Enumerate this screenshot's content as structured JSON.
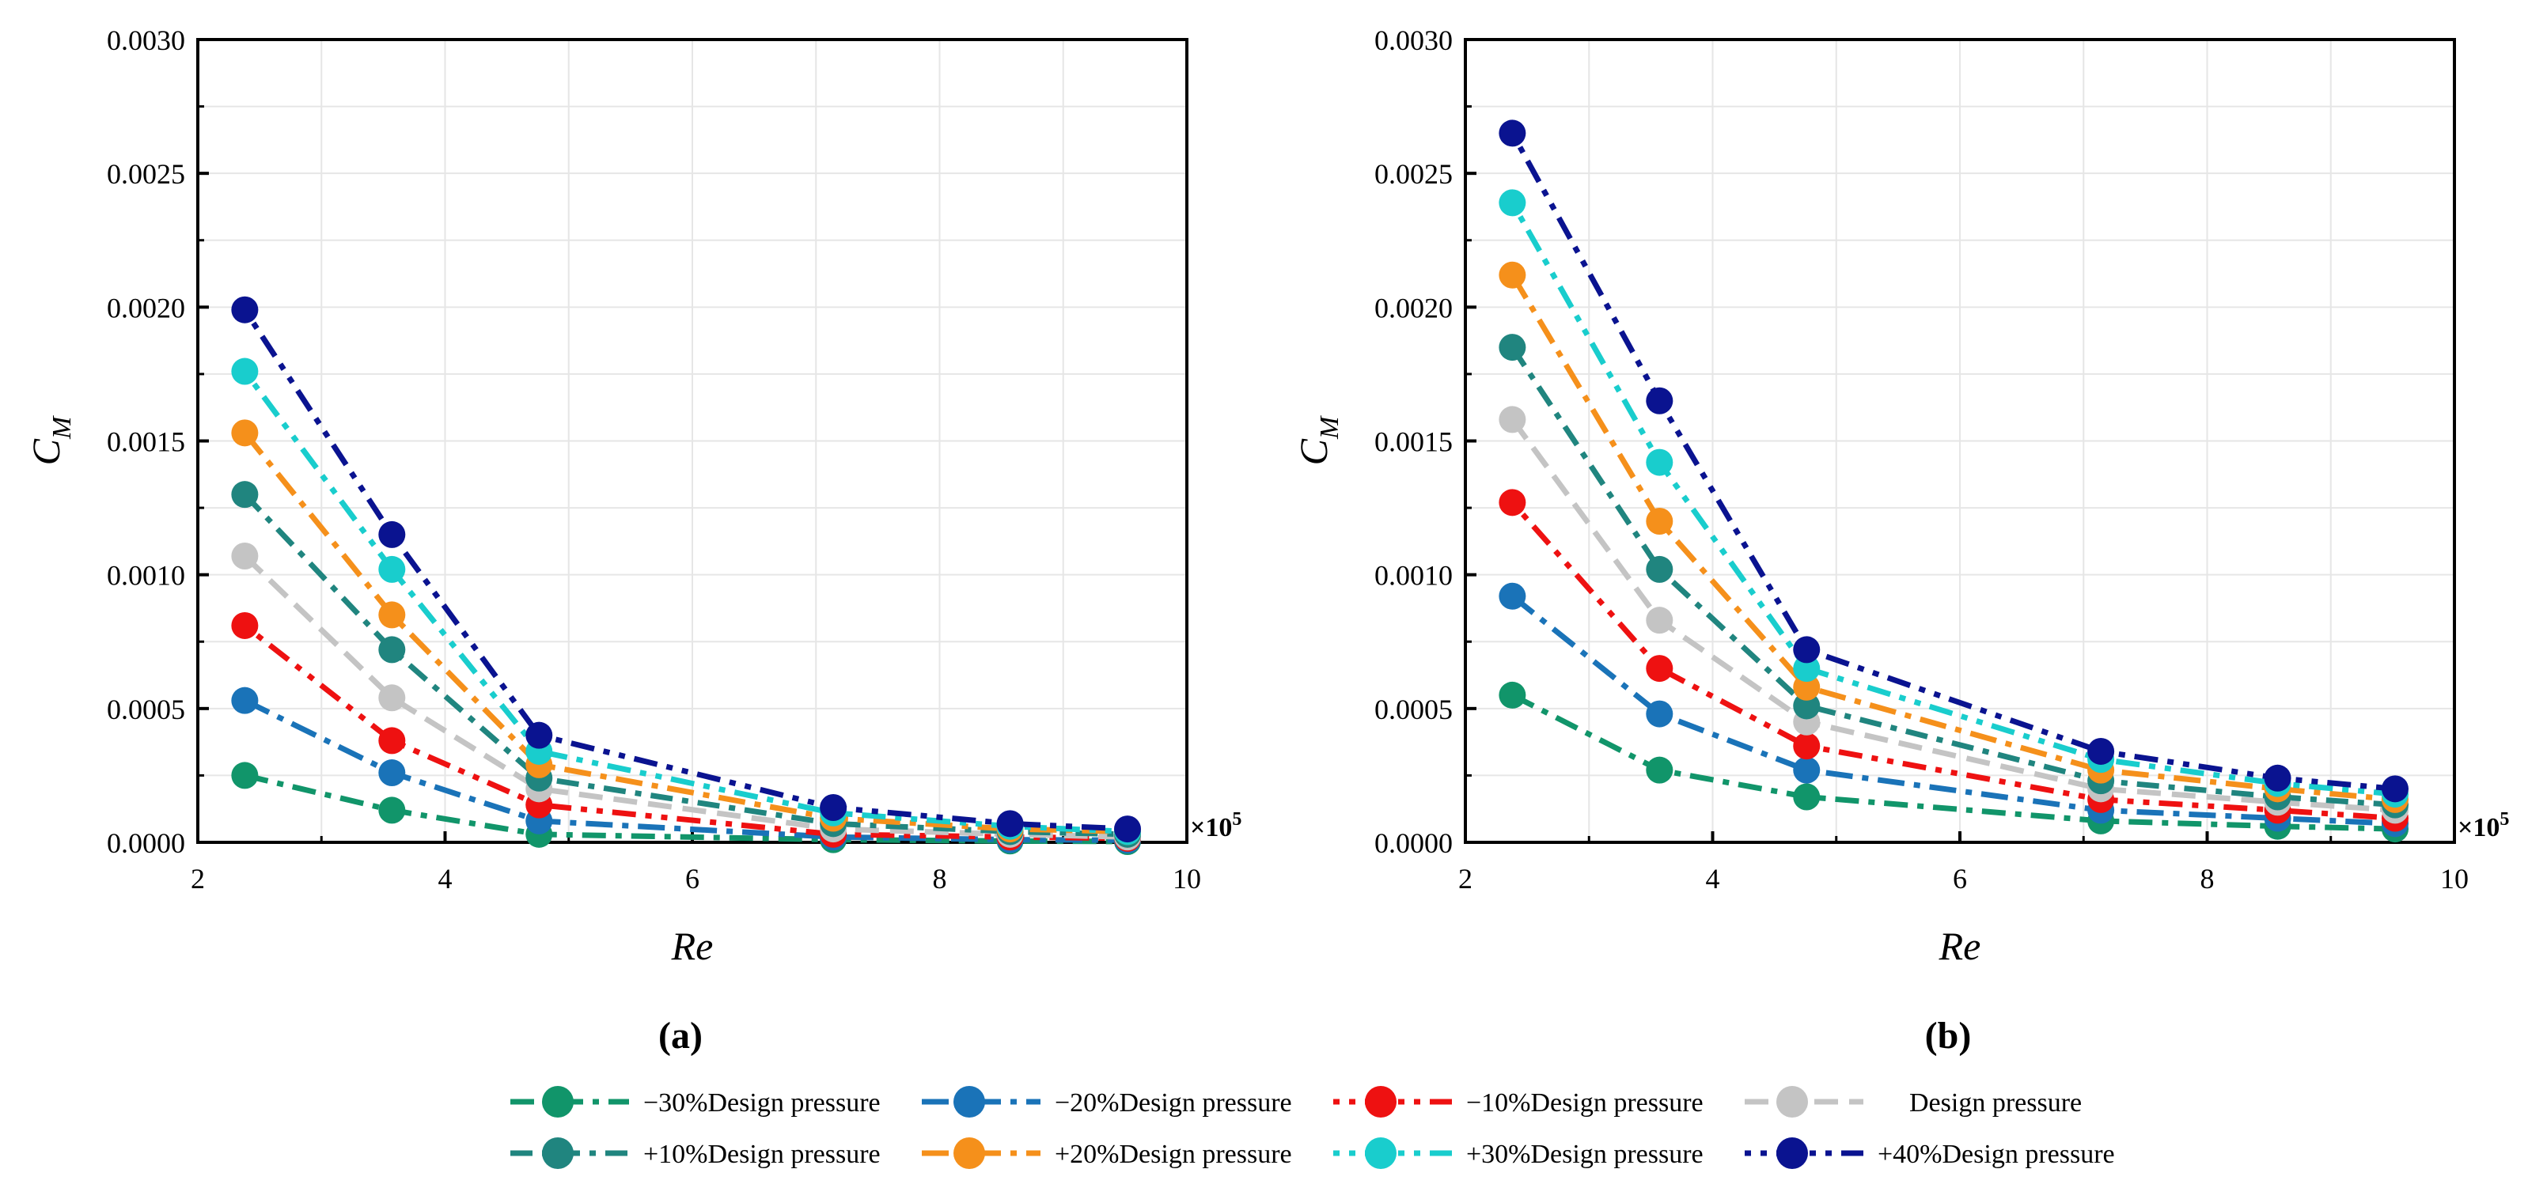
{
  "chart_data": [
    {
      "panel_label": "(a)",
      "type": "line",
      "xlabel": "Re",
      "ylabel": "C",
      "ylabel_sub": "M",
      "x_multiplier_base": "×10",
      "x_multiplier_exp": "5",
      "xlim": [
        2,
        10
      ],
      "ylim": [
        0,
        0.003
      ],
      "xticks": [
        "2",
        "4",
        "6",
        "8",
        "10"
      ],
      "yticks": [
        "0.0000",
        "0.0005",
        "0.0010",
        "0.0015",
        "0.0020",
        "0.0025",
        "0.0030"
      ],
      "grid": true,
      "x": [
        2.38,
        3.57,
        4.76,
        7.14,
        8.57,
        9.52
      ],
      "series": [
        {
          "name": "−30%Design pressure",
          "values": [
            0.00025,
            0.00012,
            3e-05,
            1e-05,
            5e-06,
            3e-06
          ]
        },
        {
          "name": "−20%Design pressure",
          "values": [
            0.00053,
            0.00026,
            8e-05,
            2e-05,
            1e-05,
            8e-06
          ]
        },
        {
          "name": "−10%Design pressure",
          "values": [
            0.00081,
            0.00038,
            0.00014,
            3e-05,
            2e-05,
            1.5e-05
          ]
        },
        {
          "name": "Design pressure",
          "values": [
            0.00107,
            0.00054,
            0.0002,
            5e-05,
            3e-05,
            2e-05
          ]
        },
        {
          "name": "+10%Design pressure",
          "values": [
            0.0013,
            0.00072,
            0.00024,
            7e-05,
            4e-05,
            3e-05
          ]
        },
        {
          "name": "+20%Design pressure",
          "values": [
            0.00153,
            0.00085,
            0.00029,
            9e-05,
            5e-05,
            4e-05
          ]
        },
        {
          "name": "+30%Design pressure",
          "values": [
            0.00176,
            0.00102,
            0.00034,
            0.00011,
            6e-05,
            4e-05
          ]
        },
        {
          "name": "+40%Design pressure",
          "values": [
            0.00199,
            0.00115,
            0.0004,
            0.00013,
            7e-05,
            5e-05
          ]
        }
      ]
    },
    {
      "panel_label": "(b)",
      "type": "line",
      "xlabel": "Re",
      "ylabel": "C",
      "ylabel_sub": "M",
      "x_multiplier_base": "×10",
      "x_multiplier_exp": "5",
      "xlim": [
        2,
        10
      ],
      "ylim": [
        0,
        0.003
      ],
      "xticks": [
        "2",
        "4",
        "6",
        "8",
        "10"
      ],
      "yticks": [
        "0.0000",
        "0.0005",
        "0.0010",
        "0.0015",
        "0.0020",
        "0.0025",
        "0.0030"
      ],
      "grid": true,
      "x": [
        2.38,
        3.57,
        4.76,
        7.14,
        8.57,
        9.52
      ],
      "series": [
        {
          "name": "−30%Design pressure",
          "values": [
            0.00055,
            0.00027,
            0.00017,
            8e-05,
            6e-05,
            5e-05
          ]
        },
        {
          "name": "−20%Design pressure",
          "values": [
            0.00092,
            0.00048,
            0.00027,
            0.00012,
            9e-05,
            7e-05
          ]
        },
        {
          "name": "−10%Design pressure",
          "values": [
            0.00127,
            0.00065,
            0.00036,
            0.00016,
            0.00012,
            9e-05
          ]
        },
        {
          "name": "Design pressure",
          "values": [
            0.00158,
            0.00083,
            0.00045,
            0.0002,
            0.00015,
            0.00012
          ]
        },
        {
          "name": "+10%Design pressure",
          "values": [
            0.00185,
            0.00102,
            0.00051,
            0.00023,
            0.00017,
            0.00014
          ]
        },
        {
          "name": "+20%Design pressure",
          "values": [
            0.00212,
            0.0012,
            0.00058,
            0.00027,
            0.0002,
            0.00016
          ]
        },
        {
          "name": "+30%Design pressure",
          "values": [
            0.00239,
            0.00142,
            0.00065,
            0.00031,
            0.00022,
            0.00018
          ]
        },
        {
          "name": "+40%Design pressure",
          "values": [
            0.00265,
            0.00165,
            0.00072,
            0.00034,
            0.00024,
            0.0002
          ]
        }
      ]
    }
  ],
  "series_colors": [
    "#11956a",
    "#1a73b8",
    "#ee1111",
    "#c4c4c4",
    "#20857f",
    "#f5901b",
    "#19cdcd",
    "#0a1390"
  ],
  "legend": [
    "−30%Design pressure",
    "−20%Design pressure",
    "−10%Design pressure",
    "Design pressure",
    "+10%Design pressure",
    "+20%Design pressure",
    "+30%Design pressure",
    "+40%Design pressure"
  ]
}
